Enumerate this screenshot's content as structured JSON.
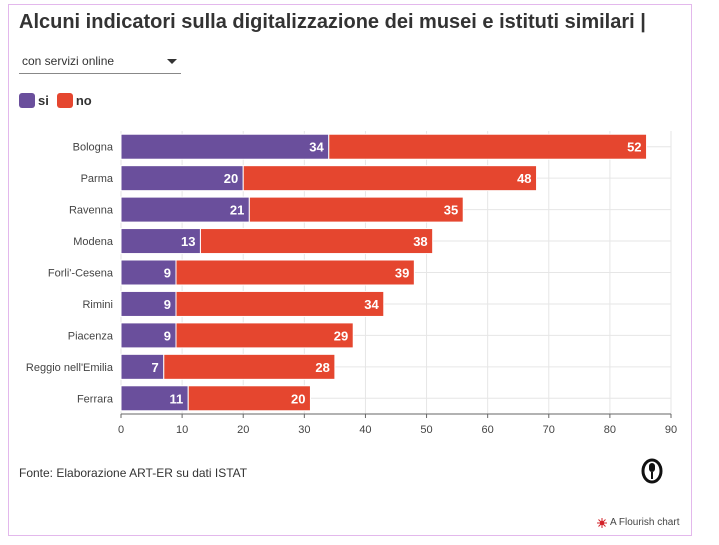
{
  "title": "Alcuni indicatori sulla digitalizzazione dei musei e istituti similari |",
  "dropdown": {
    "selected": "con servizi online"
  },
  "source": "Fonte: Elaborazione ART-ER su dati ISTAT",
  "credit": "A Flourish chart",
  "colors": {
    "si": "#6a4f9c",
    "no": "#e5462f",
    "grid": "#e6e6e6",
    "border": "#e3b8ec"
  },
  "icons": {
    "dropdown": "chevron-down-icon",
    "logo": "flourish-logo-icon",
    "credit": "flourish-credit-icon"
  },
  "chart_data": {
    "type": "bar",
    "orientation": "horizontal",
    "stacked": true,
    "categories": [
      "Bologna",
      "Parma",
      "Ravenna",
      "Modena",
      "Forli'-Cesena",
      "Rimini",
      "Piacenza",
      "Reggio nell'Emilia",
      "Ferrara"
    ],
    "series": [
      {
        "name": "si",
        "values": [
          34,
          20,
          21,
          13,
          9,
          9,
          9,
          7,
          11
        ]
      },
      {
        "name": "no",
        "values": [
          52,
          48,
          35,
          38,
          39,
          34,
          29,
          28,
          20
        ]
      }
    ],
    "xlim": [
      0,
      90
    ],
    "xticks": [
      0,
      10,
      20,
      30,
      40,
      50,
      60,
      70,
      80,
      90
    ],
    "grid": true,
    "legend_position": "top-left"
  }
}
